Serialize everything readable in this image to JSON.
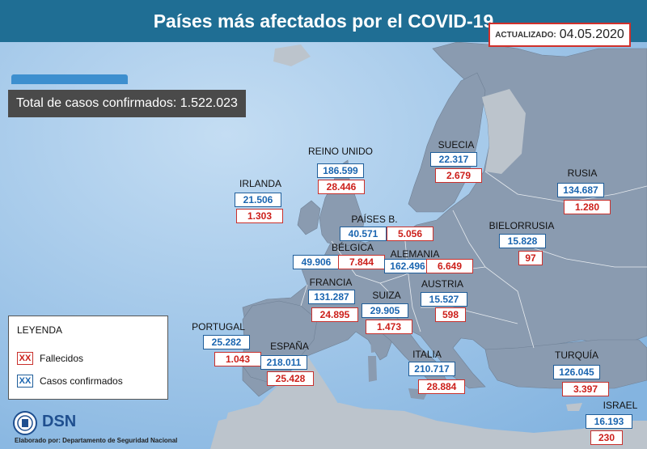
{
  "title": "Países más afectados por el COVID-19",
  "updated": {
    "label": "ACTUALIZADO:",
    "date": "04.05.2020"
  },
  "total": "Total de casos confirmados: 1.522.023",
  "countries": [
    {
      "name": "REINO UNIDO",
      "confirmed": "186.599",
      "deaths": "28.446"
    },
    {
      "name": "SUECIA",
      "confirmed": "22.317",
      "deaths": "2.679"
    },
    {
      "name": "RUSIA",
      "confirmed": "134.687",
      "deaths": "1.280"
    },
    {
      "name": "IRLANDA",
      "confirmed": "21.506",
      "deaths": "1.303"
    },
    {
      "name": "PAÍSES B.",
      "confirmed": "40.571",
      "deaths": "5.056"
    },
    {
      "name": "BIELORRUSIA",
      "confirmed": "15.828",
      "deaths": "97"
    },
    {
      "name": "BÉLGICA",
      "confirmed": "49.906",
      "deaths": "7.844"
    },
    {
      "name": "ALEMANIA",
      "confirmed": "162.496",
      "deaths": "6.649"
    },
    {
      "name": "FRANCIA",
      "confirmed": "131.287",
      "deaths": "24.895"
    },
    {
      "name": "SUIZA",
      "confirmed": "29.905",
      "deaths": "1.473"
    },
    {
      "name": "AUSTRIA",
      "confirmed": "15.527",
      "deaths": "598"
    },
    {
      "name": "PORTUGAL",
      "confirmed": "25.282",
      "deaths": "1.043"
    },
    {
      "name": "ESPAÑA",
      "confirmed": "218.011",
      "deaths": "25.428"
    },
    {
      "name": "ITALIA",
      "confirmed": "210.717",
      "deaths": "28.884"
    },
    {
      "name": "TURQUÍA",
      "confirmed": "126.045",
      "deaths": "3.397"
    },
    {
      "name": "ISRAEL",
      "confirmed": "16.193",
      "deaths": "230"
    }
  ],
  "legend": {
    "title": "LEYENDA",
    "swatch": "XX",
    "deaths_label": "Fallecidos",
    "confirmed_label": "Casos confirmados"
  },
  "footer": {
    "logo": "DSN",
    "credit": "Elaborado por: Departamento de Seguridad Nacional"
  },
  "colors": {
    "title_bg": "#1f6e94",
    "sea": "#9ec4e8",
    "land_highlight": "#8a9bb0",
    "land_other": "#bcc4cc",
    "confirmed": "#1a65b0",
    "deaths": "#cc1f1a"
  }
}
